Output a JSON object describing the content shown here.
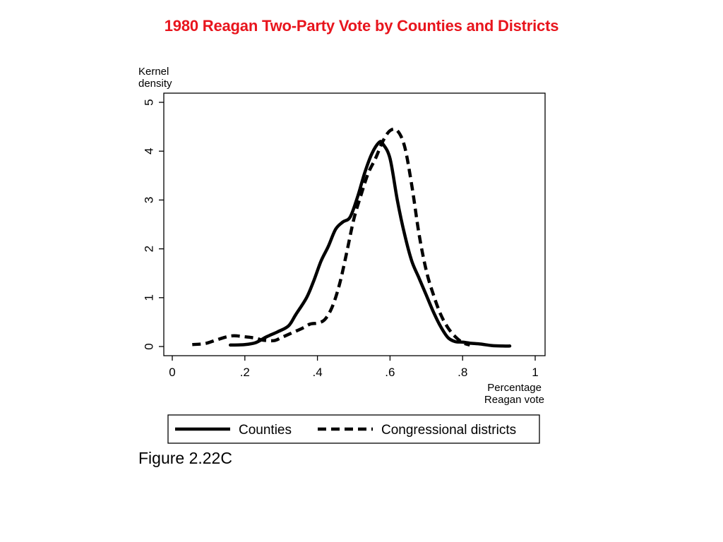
{
  "slide": {
    "title": "1980 Reagan Two-Party Vote by Counties and Districts",
    "title_color": "#e8151d",
    "caption": "Figure 2.22C"
  },
  "chart_data": {
    "type": "line",
    "title": "",
    "xlabel": [
      "Percentage",
      "Reagan vote"
    ],
    "ylabel": [
      "Kernel",
      "density"
    ],
    "xlim": [
      0,
      1
    ],
    "ylim": [
      -0.2,
      5.2
    ],
    "x_ticks": [
      0,
      0.2,
      0.4,
      0.6,
      0.8,
      1
    ],
    "x_tick_labels": [
      "0",
      ".2",
      ".4",
      ".6",
      ".8",
      "1"
    ],
    "y_ticks": [
      0,
      1,
      2,
      3,
      4,
      5
    ],
    "y_tick_labels": [
      "0",
      "1",
      "2",
      "3",
      "4",
      "5"
    ],
    "grid": false,
    "legend_position": "bottom",
    "series": [
      {
        "name": "Counties",
        "style": "solid",
        "color": "#000000",
        "x": [
          0.16,
          0.2,
          0.23,
          0.26,
          0.29,
          0.32,
          0.34,
          0.37,
          0.39,
          0.41,
          0.43,
          0.45,
          0.47,
          0.49,
          0.51,
          0.53,
          0.55,
          0.57,
          0.58,
          0.6,
          0.62,
          0.64,
          0.66,
          0.68,
          0.7,
          0.72,
          0.74,
          0.76,
          0.78,
          0.8,
          0.82,
          0.85,
          0.88,
          0.91,
          0.93
        ],
        "y": [
          0.03,
          0.04,
          0.08,
          0.2,
          0.3,
          0.42,
          0.65,
          1.0,
          1.35,
          1.75,
          2.05,
          2.4,
          2.55,
          2.65,
          3.05,
          3.55,
          3.95,
          4.18,
          4.15,
          3.85,
          3.0,
          2.3,
          1.75,
          1.4,
          1.05,
          0.7,
          0.4,
          0.18,
          0.1,
          0.09,
          0.07,
          0.05,
          0.02,
          0.01,
          0.01
        ]
      },
      {
        "name": "Congressional districts",
        "style": "dashed",
        "color": "#000000",
        "x": [
          0.055,
          0.09,
          0.12,
          0.15,
          0.17,
          0.2,
          0.23,
          0.25,
          0.28,
          0.3,
          0.33,
          0.36,
          0.38,
          0.4,
          0.42,
          0.44,
          0.46,
          0.48,
          0.5,
          0.52,
          0.54,
          0.56,
          0.58,
          0.6,
          0.62,
          0.64,
          0.66,
          0.68,
          0.7,
          0.72,
          0.74,
          0.76,
          0.78,
          0.8,
          0.82
        ],
        "y": [
          0.04,
          0.06,
          0.13,
          0.2,
          0.22,
          0.2,
          0.17,
          0.13,
          0.12,
          0.18,
          0.28,
          0.38,
          0.46,
          0.48,
          0.55,
          0.8,
          1.25,
          1.9,
          2.6,
          3.1,
          3.55,
          3.85,
          4.2,
          4.42,
          4.42,
          4.1,
          3.3,
          2.3,
          1.55,
          1.05,
          0.65,
          0.38,
          0.2,
          0.08,
          0.03
        ]
      }
    ]
  }
}
